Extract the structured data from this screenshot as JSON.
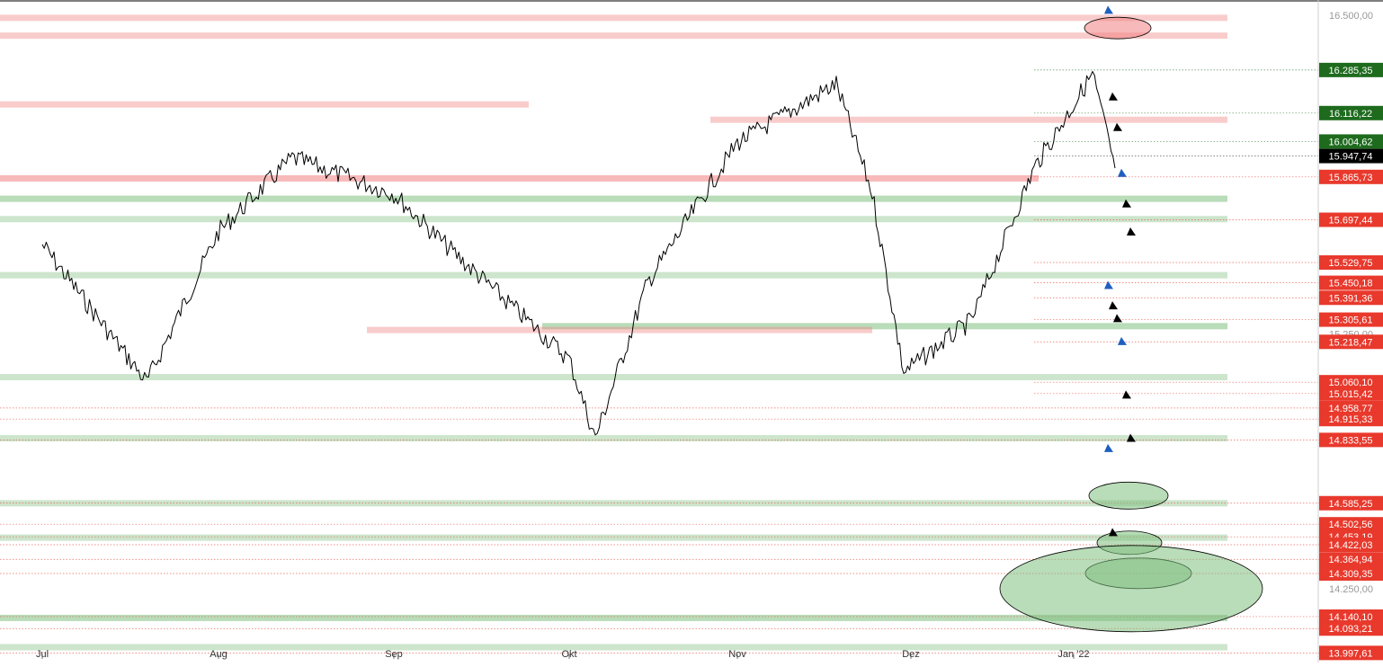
{
  "chart_data": {
    "type": "line",
    "title": "",
    "xlabel": "",
    "ylabel": "",
    "x_ticks": [
      "Jul",
      "Aug",
      "Sep",
      "Okt",
      "Nov",
      "Dez",
      "Jan '22"
    ],
    "ylim": [
      13960,
      16560
    ],
    "y_ticks": [
      "16.500,00",
      "15.250,00",
      "14.250,00"
    ],
    "grid": false,
    "price_series": {
      "name": "",
      "color": "#000000",
      "approx_close_by_period": [
        {
          "x": "Jul",
          "y": 15600
        },
        {
          "x": "Mid-Jul",
          "y": 15060
        },
        {
          "x": "Aug",
          "y": 15650
        },
        {
          "x": "Mid-Aug",
          "y": 15940
        },
        {
          "x": "Sep",
          "y": 15800
        },
        {
          "x": "Mid-Sep",
          "y": 15600
        },
        {
          "x": "Okt",
          "y": 15150
        },
        {
          "x": "Early-Okt",
          "y": 14840
        },
        {
          "x": "Mid-Okt",
          "y": 15450
        },
        {
          "x": "Nov",
          "y": 16000
        },
        {
          "x": "Mid-Nov",
          "y": 16230
        },
        {
          "x": "Late-Nov",
          "y": 15800
        },
        {
          "x": "Dez",
          "y": 15100
        },
        {
          "x": "Mid-Dez",
          "y": 15300
        },
        {
          "x": "Late-Dez",
          "y": 15900
        },
        {
          "x": "Jan '22",
          "y": 16270
        },
        {
          "x": "Early-Jan",
          "y": 15900
        }
      ]
    },
    "price_labels": [
      {
        "text": "16.285,35",
        "value": 16285.35,
        "color": "#1e6b1e"
      },
      {
        "text": "16.116,22",
        "value": 16116.22,
        "color": "#1e6b1e"
      },
      {
        "text": "16.004,62",
        "value": 16004.62,
        "color": "#1e6b1e"
      },
      {
        "text": "15.947,74",
        "value": 15947.74,
        "color": "#000000"
      },
      {
        "text": "15.865,73",
        "value": 15865.73,
        "color": "#e8392c"
      },
      {
        "text": "15.697,44",
        "value": 15697.44,
        "color": "#e8392c"
      },
      {
        "text": "15.529,75",
        "value": 15529.75,
        "color": "#e8392c"
      },
      {
        "text": "15.450,18",
        "value": 15450.18,
        "color": "#e8392c"
      },
      {
        "text": "15.391,36",
        "value": 15391.36,
        "color": "#e8392c"
      },
      {
        "text": "15.305,61",
        "value": 15305.61,
        "color": "#e8392c"
      },
      {
        "text": "15.218,47",
        "value": 15218.47,
        "color": "#e8392c"
      },
      {
        "text": "15.060,10",
        "value": 15060.1,
        "color": "#e8392c"
      },
      {
        "text": "15.015,42",
        "value": 15015.42,
        "color": "#e8392c"
      },
      {
        "text": "14.958,77",
        "value": 14958.77,
        "color": "#e8392c"
      },
      {
        "text": "14.915,33",
        "value": 14915.33,
        "color": "#e8392c"
      },
      {
        "text": "14.833,55",
        "value": 14833.55,
        "color": "#e8392c"
      },
      {
        "text": "14.585,25",
        "value": 14585.25,
        "color": "#e8392c"
      },
      {
        "text": "14.502,56",
        "value": 14502.56,
        "color": "#e8392c"
      },
      {
        "text": "14.453,19",
        "value": 14453.19,
        "color": "#e8392c"
      },
      {
        "text": "14.422,03",
        "value": 14422.03,
        "color": "#e8392c"
      },
      {
        "text": "14.364,94",
        "value": 14364.94,
        "color": "#e8392c"
      },
      {
        "text": "14.309,35",
        "value": 14309.35,
        "color": "#e8392c"
      },
      {
        "text": "14.140,10",
        "value": 14140.1,
        "color": "#e8392c"
      },
      {
        "text": "14.093,21",
        "value": 14093.21,
        "color": "#e8392c"
      },
      {
        "text": "13.997,61",
        "value": 13997.61,
        "color": "#e8392c"
      }
    ],
    "zones": [
      {
        "kind": "resistance",
        "level": 16490,
        "x_from": "Jul",
        "x_to": "Jan '22",
        "strength": "light"
      },
      {
        "kind": "resistance",
        "level": 16420,
        "x_from": "Jul",
        "x_to": "Jan '22",
        "strength": "light"
      },
      {
        "kind": "resistance",
        "level": 16150,
        "x_from": "Jul",
        "x_to": "Sep",
        "strength": "light"
      },
      {
        "kind": "resistance",
        "level": 16090,
        "x_from": "Nov",
        "x_to": "Jan '22",
        "strength": "light"
      },
      {
        "kind": "resistance",
        "level": 15860,
        "x_from": "Jul",
        "x_to": "Dez",
        "strength": "medium"
      },
      {
        "kind": "support",
        "level": 15780,
        "x_from": "Jul",
        "x_to": "Jan '22",
        "strength": "medium"
      },
      {
        "kind": "support",
        "level": 15700,
        "x_from": "Jul",
        "x_to": "Jan '22",
        "strength": "light"
      },
      {
        "kind": "support",
        "level": 15480,
        "x_from": "Jul",
        "x_to": "Jan '22",
        "strength": "light"
      },
      {
        "kind": "support",
        "level": 15280,
        "x_from": "Okt",
        "x_to": "Jan '22",
        "strength": "medium"
      },
      {
        "kind": "resistance",
        "level": 15265,
        "x_from": "Sep",
        "x_to": "Nov",
        "strength": "light"
      },
      {
        "kind": "support",
        "level": 15080,
        "x_from": "Jul",
        "x_to": "Jan '22",
        "strength": "light"
      },
      {
        "kind": "support",
        "level": 14840,
        "x_from": "Jul",
        "x_to": "Jan '22",
        "strength": "light"
      },
      {
        "kind": "support",
        "level": 14585,
        "x_from": "Jul",
        "x_to": "Jan '22",
        "strength": "light"
      },
      {
        "kind": "support",
        "level": 14450,
        "x_from": "Jul",
        "x_to": "Jan '22",
        "strength": "light"
      },
      {
        "kind": "support",
        "level": 14135,
        "x_from": "Jul",
        "x_to": "Jan '22",
        "strength": "medium"
      },
      {
        "kind": "support",
        "level": 14020,
        "x_from": "Jul",
        "x_to": "Jan '22",
        "strength": "light"
      }
    ],
    "target_ellipses": [
      {
        "level": 16450,
        "kind": "resistance"
      },
      {
        "level": 14615,
        "kind": "support"
      },
      {
        "level": 14430,
        "kind": "support"
      },
      {
        "level": 14310,
        "kind": "support"
      },
      {
        "level": 14250,
        "kind": "support"
      }
    ],
    "colors": {
      "support": "#7fbf7f",
      "resistance": "#f08080",
      "price_line": "#000000",
      "label_red": "#e8392c",
      "label_green": "#1e6b1e",
      "label_black": "#000000"
    }
  }
}
